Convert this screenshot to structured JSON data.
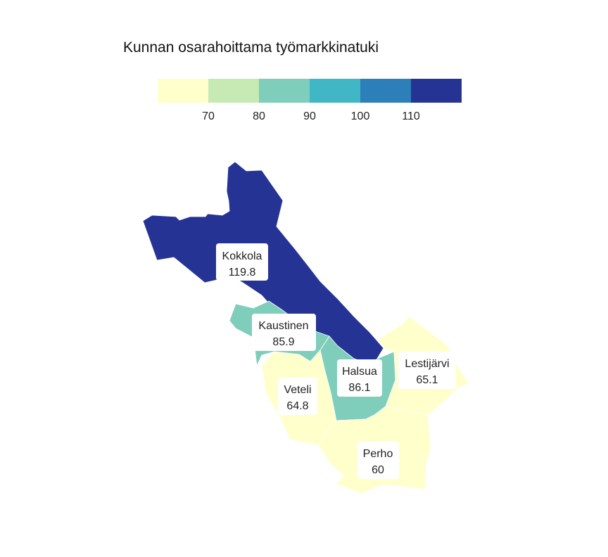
{
  "chart_data": {
    "type": "choropleth",
    "title": "Kunnan osarahoittama työmarkkinatuki",
    "legend": {
      "thresholds": [
        70,
        80,
        90,
        100,
        110
      ],
      "tick_labels": [
        "70",
        "80",
        "90",
        "100",
        "110"
      ],
      "colors": [
        "#ffffcc",
        "#c7e9b4",
        "#7fcdbb",
        "#41b6c4",
        "#2c7fb8",
        "#253494"
      ],
      "domain": [
        60,
        120
      ]
    },
    "regions": [
      {
        "name": "Kokkola",
        "value": 119.8,
        "value_label": "119.8"
      },
      {
        "name": "Kaustinen",
        "value": 85.9,
        "value_label": "85.9"
      },
      {
        "name": "Halsua",
        "value": 86.1,
        "value_label": "86.1"
      },
      {
        "name": "Veteli",
        "value": 64.8,
        "value_label": "64.8"
      },
      {
        "name": "Lestijärvi",
        "value": 65.1,
        "value_label": "65.1"
      },
      {
        "name": "Perho",
        "value": 60,
        "value_label": "60"
      }
    ]
  }
}
